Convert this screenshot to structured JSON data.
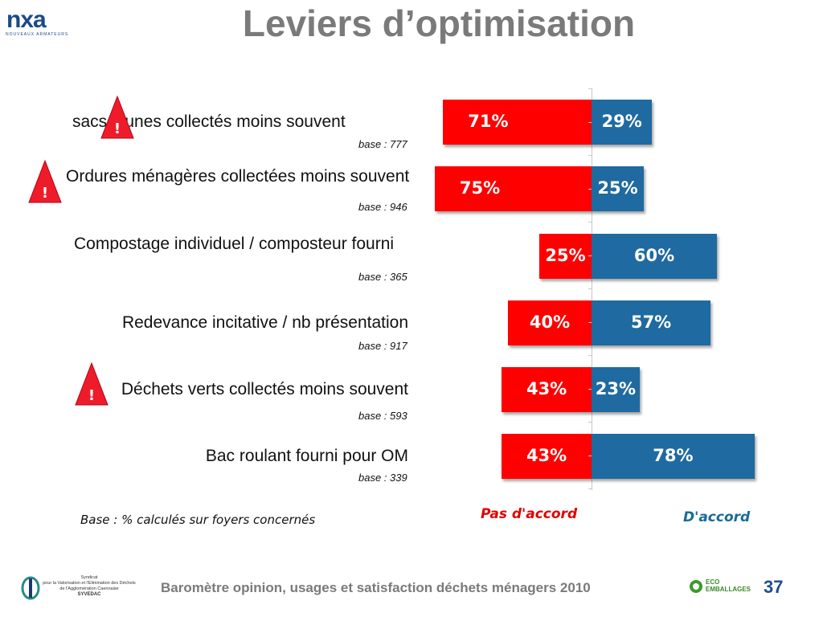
{
  "header": {
    "logo_text": "nxa",
    "logo_subtitle": "NOUVEAUX ARMATEURS",
    "title": "Leviers d’optimisation"
  },
  "chart_data": {
    "type": "bar",
    "orientation": "horizontal-diverging",
    "categories": [
      "sacs jaunes collectés moins souvent",
      "Ordures ménagères collectées moins souvent",
      "Compostage individuel / composteur fourni",
      "Redevance incitative / nb présentation",
      "Déchets verts collectés moins souvent",
      "Bac roulant fourni pour OM"
    ],
    "bases": [
      "base : 777",
      "base : 946",
      "base : 365",
      "base : 917",
      "base : 593",
      "base : 339"
    ],
    "warning_flags": [
      true,
      true,
      false,
      false,
      true,
      false
    ],
    "series": [
      {
        "name": "Pas d'accord",
        "values": [
          71,
          75,
          25,
          40,
          43,
          43
        ],
        "labels": [
          "71%",
          "75%",
          "25%",
          "40%",
          "43%",
          "43%"
        ],
        "color": "#ff0000"
      },
      {
        "name": "D'accord",
        "values": [
          29,
          25,
          60,
          57,
          23,
          78
        ],
        "labels": [
          "29%",
          "25%",
          "60%",
          "57%",
          "23%",
          "78%"
        ],
        "color": "#1f6aa0"
      }
    ]
  },
  "warning_symbol": "!",
  "note": "Base : % calculés sur foyers concernés",
  "footer": {
    "text": "Baromètre opinion, usages et satisfaction déchets ménagers 2010",
    "page_number": "37",
    "syvedac_lines": [
      "Syndicat",
      "pour la Valorisation et l'Elimination des Déchets",
      "de l'Agglomération Caennaise",
      "SYVEDAC"
    ],
    "eco_text": "ECO EMBALLAGES"
  }
}
